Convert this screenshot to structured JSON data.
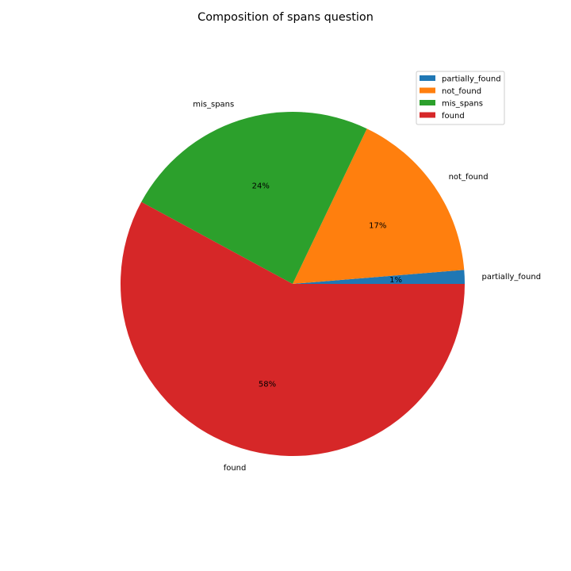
{
  "chart_data": {
    "type": "pie",
    "title": "Composition of spans question",
    "start_angle_deg": 0,
    "direction": "counterclockwise",
    "legend_position": "top-right",
    "slices": [
      {
        "label": "partially_found",
        "value": 1.3,
        "pct_label": "1%",
        "color": "#1f77b4"
      },
      {
        "label": "not_found",
        "value": 16.6,
        "pct_label": "17%",
        "color": "#ff7f0e"
      },
      {
        "label": "mis_spans",
        "value": 24.2,
        "pct_label": "24%",
        "color": "#2ca02c"
      },
      {
        "label": "found",
        "value": 57.9,
        "pct_label": "58%",
        "color": "#d62728"
      }
    ]
  }
}
